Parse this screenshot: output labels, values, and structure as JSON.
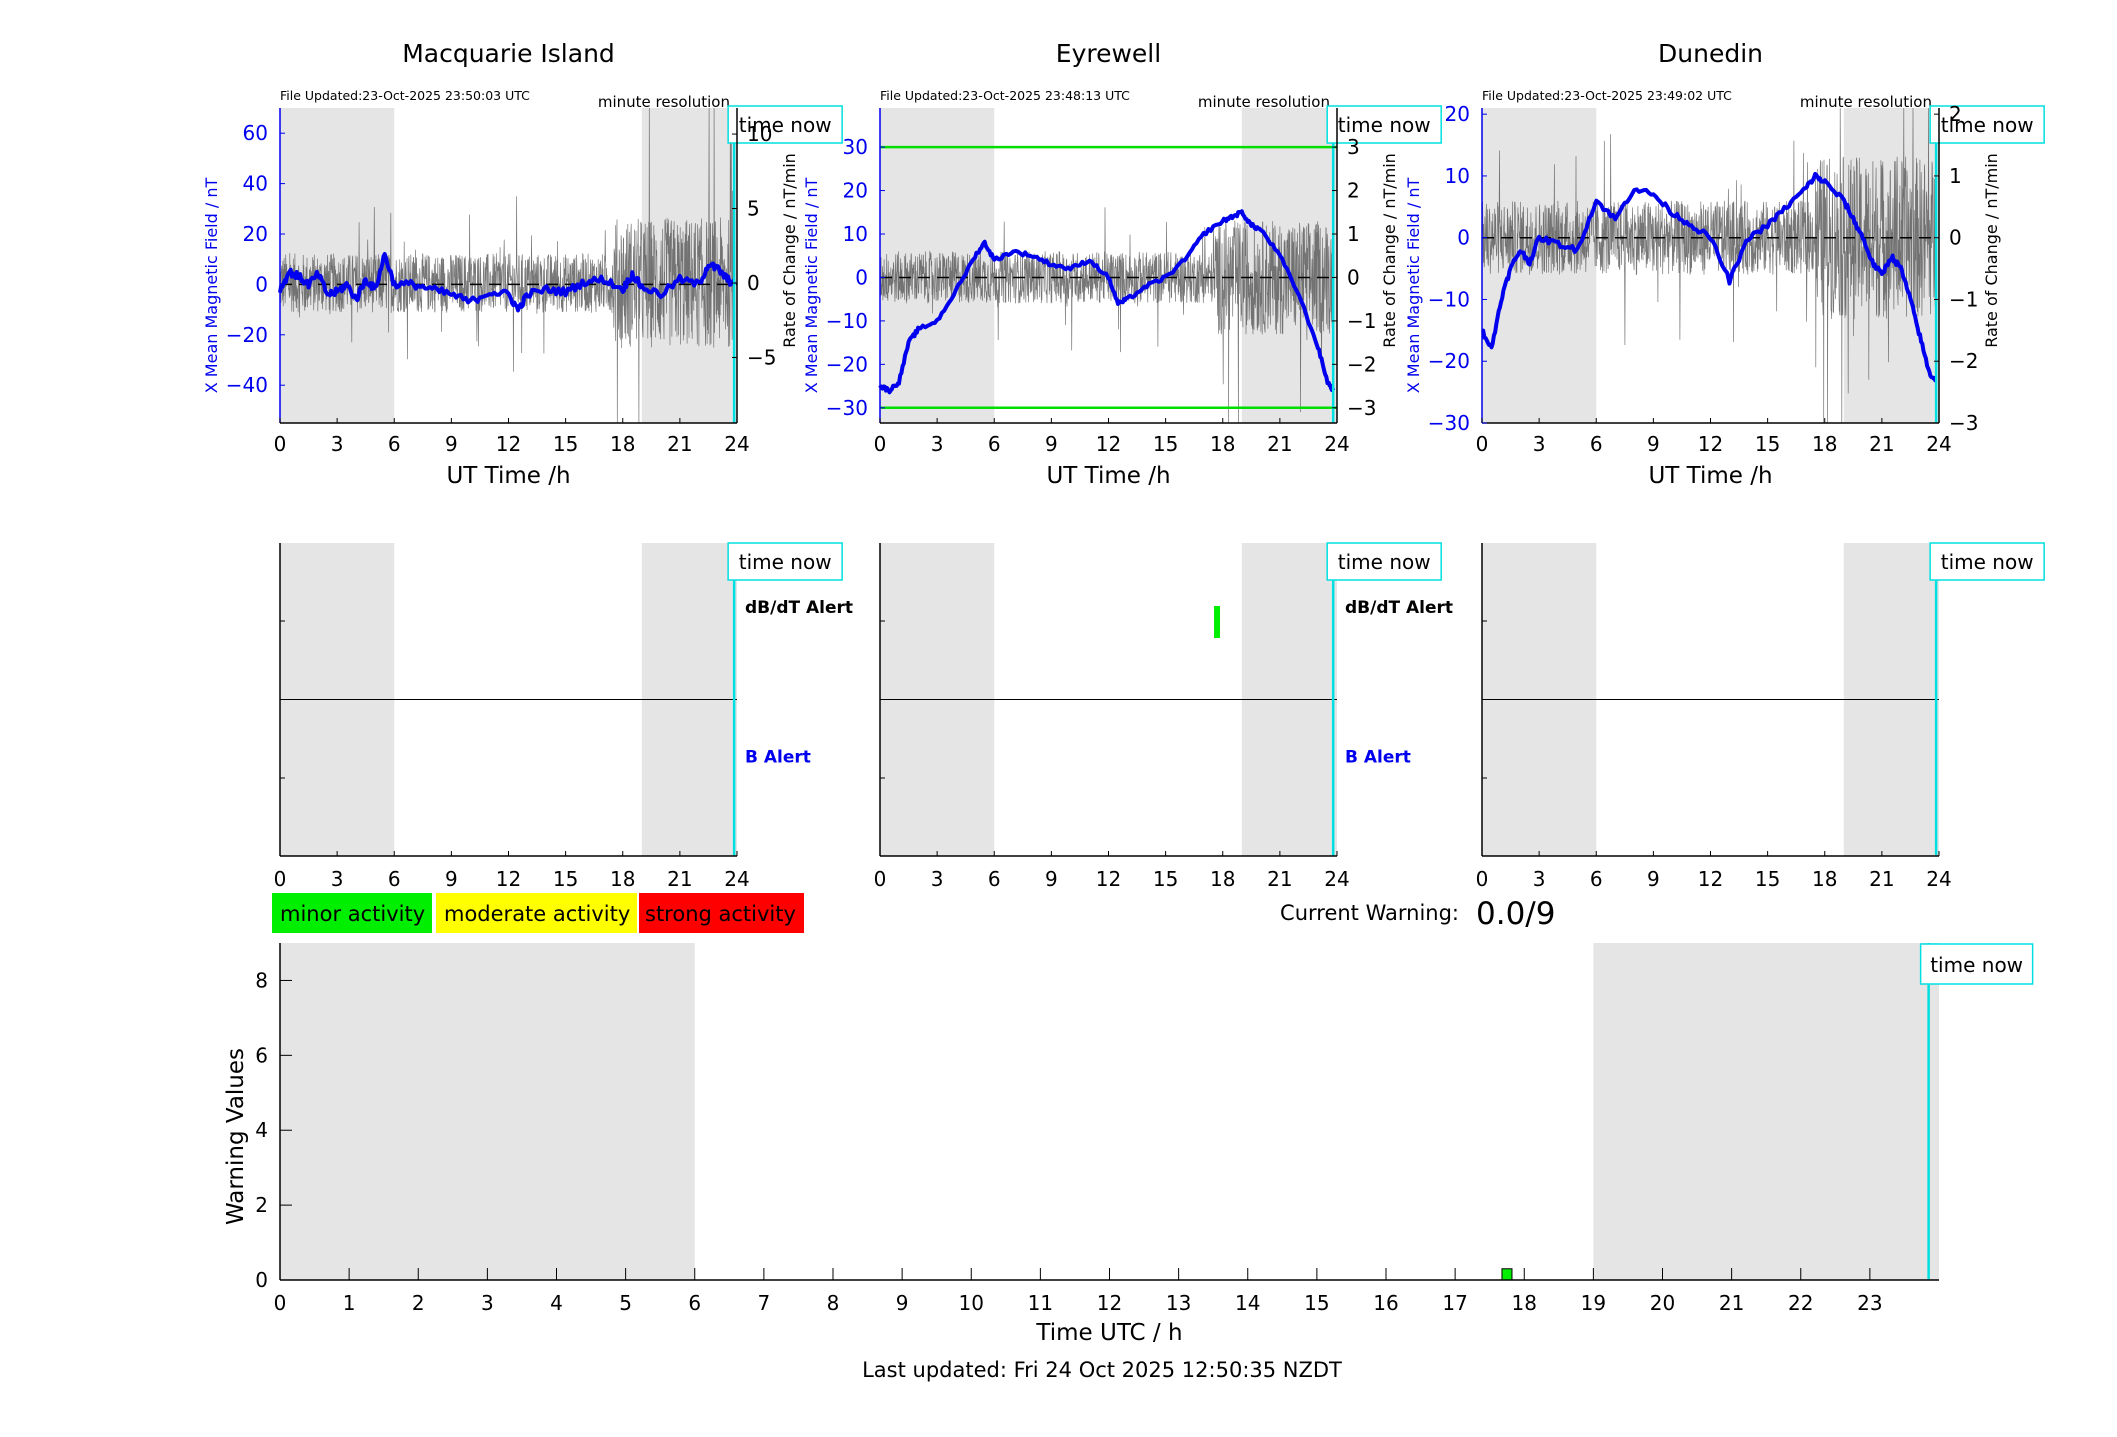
{
  "colors": {
    "field": "#0000ee",
    "rate": "#555555",
    "shade": "#e5e5e5",
    "timenow": "#00e0e0",
    "threshold": "#00dd00",
    "minor": "#00ee00",
    "moderate": "#ffff00",
    "strong": "#ff0000"
  },
  "chart_data": [
    {
      "type": "line",
      "title": "Macquarie Island",
      "file_updated": "File Updated:23-Oct-2025 23:50:03 UTC",
      "resolution": "minute resolution",
      "time_now_label": "time now",
      "time_now": 23.85,
      "xlabel": "UT Time /h",
      "ylabel": "X Mean Magnetic Field / nT",
      "y2label": "Rate of Change / nT/min",
      "xlim": [
        0,
        24
      ],
      "xticks": [
        0,
        3,
        6,
        9,
        12,
        15,
        18,
        21,
        24
      ],
      "ylim": [
        -55,
        70
      ],
      "yticks": [
        -40,
        -20,
        0,
        20,
        40,
        60
      ],
      "y2lim": [
        -9.4,
        11.75
      ],
      "y2ticks": [
        -5,
        0,
        5,
        10
      ],
      "shaded_x": [
        [
          0,
          6
        ],
        [
          19.0,
          24
        ]
      ],
      "noise_amp": 2.0,
      "series": [
        {
          "name": "X Mean Magnetic Field",
          "axis": "left",
          "x": [
            0,
            0.5,
            1,
            1.5,
            2,
            2.5,
            3,
            3.5,
            4,
            4.5,
            5,
            5.5,
            6,
            7,
            8,
            9,
            10,
            11,
            12,
            12.5,
            13,
            14,
            15,
            16,
            17,
            18,
            18.5,
            19,
            20,
            21,
            22,
            22.5,
            23,
            23.5,
            23.85
          ],
          "y": [
            -2,
            5,
            3,
            0,
            4,
            -4,
            -3,
            0,
            -6,
            2,
            -2,
            12,
            0,
            0,
            -2,
            -4,
            -7,
            -3,
            -4,
            -10,
            -4,
            -2,
            -3,
            1,
            2,
            -2,
            4,
            -1,
            -4,
            2,
            0,
            8,
            6,
            2,
            0
          ]
        }
      ]
    },
    {
      "type": "line",
      "title": "Eyrewell",
      "file_updated": "File Updated:23-Oct-2025 23:48:13 UTC",
      "resolution": "minute resolution",
      "time_now_label": "time now",
      "time_now": 23.8,
      "xlabel": "UT Time /h",
      "ylabel": "X Mean Magnetic Field / nT",
      "y2label": "Rate of Change / nT/min",
      "xlim": [
        0,
        24
      ],
      "xticks": [
        0,
        3,
        6,
        9,
        12,
        15,
        18,
        21,
        24
      ],
      "ylim": [
        -33.5,
        39
      ],
      "yticks": [
        -30,
        -20,
        -10,
        0,
        10,
        20,
        30
      ],
      "y2lim": [
        -3.35,
        3.9
      ],
      "y2ticks": [
        -3,
        -2,
        -1,
        0,
        1,
        2,
        3
      ],
      "thresholds": [
        30,
        -30
      ],
      "shaded_x": [
        [
          0,
          6
        ],
        [
          19.0,
          24
        ]
      ],
      "noise_amp": 0.6,
      "series": [
        {
          "name": "X Mean Magnetic Field",
          "axis": "left",
          "x": [
            0,
            0.5,
            1,
            1.5,
            2,
            3,
            4,
            5,
            5.5,
            6,
            7,
            8,
            9,
            10,
            11,
            12,
            12.5,
            13,
            14,
            15,
            16,
            17,
            18,
            18.5,
            19,
            19.5,
            20,
            21,
            22,
            23,
            23.5,
            23.8
          ],
          "y": [
            -25,
            -26,
            -24,
            -15,
            -12,
            -10,
            -3,
            5,
            8,
            4,
            6,
            5,
            3,
            2,
            4,
            0,
            -6,
            -5,
            -2,
            0,
            4,
            10,
            13,
            14,
            15,
            12,
            11,
            5,
            -4,
            -16,
            -24,
            -26
          ]
        }
      ]
    },
    {
      "type": "line",
      "title": "Dunedin",
      "file_updated": "File Updated:23-Oct-2025 23:49:02 UTC",
      "resolution": "minute resolution",
      "time_now_label": "time now",
      "time_now": 23.85,
      "xlabel": "UT Time /h",
      "ylabel": "X Mean Magnetic Field / nT",
      "y2label": "Rate of Change / nT/min",
      "xlim": [
        0,
        24
      ],
      "xticks": [
        0,
        3,
        6,
        9,
        12,
        15,
        18,
        21,
        24
      ],
      "ylim": [
        -30,
        21
      ],
      "yticks": [
        -30,
        -20,
        -10,
        0,
        10,
        20
      ],
      "y2lim": [
        -3,
        2.1
      ],
      "y2ticks": [
        -3,
        -2,
        -1,
        0,
        1,
        2
      ],
      "shaded_x": [
        [
          0,
          6
        ],
        [
          19.0,
          24
        ]
      ],
      "noise_amp": 0.6,
      "series": [
        {
          "name": "X Mean Magnetic Field",
          "axis": "left",
          "x": [
            0,
            0.5,
            1,
            1.5,
            2,
            2.5,
            3,
            4,
            5,
            6,
            7,
            8,
            9,
            10,
            11,
            12,
            13,
            14,
            15,
            16,
            17,
            17.5,
            18,
            19,
            19.5,
            20,
            20.5,
            21,
            21.5,
            22,
            22.5,
            23,
            23.5,
            23.85
          ],
          "y": [
            -15,
            -18,
            -10,
            -5,
            -2,
            -4,
            0,
            -1,
            -2,
            6,
            3,
            8,
            7,
            4,
            2,
            0,
            -7,
            0,
            2,
            5,
            8,
            10,
            9,
            6,
            3,
            0,
            -4,
            -6,
            -3,
            -5,
            -10,
            -16,
            -22,
            -23
          ]
        }
      ]
    },
    {
      "type": "alert",
      "time_now_label": "time now",
      "time_now": 23.85,
      "xlim": [
        0,
        24
      ],
      "xticks": [
        0,
        3,
        6,
        9,
        12,
        15,
        18,
        21,
        24
      ],
      "shaded_x": [
        [
          0,
          6
        ],
        [
          19.0,
          24
        ]
      ],
      "dbdt_label": "dB/dT Alert",
      "b_label": "B Alert",
      "alerts": []
    },
    {
      "type": "alert",
      "time_now_label": "time now",
      "time_now": 23.8,
      "xlim": [
        0,
        24
      ],
      "xticks": [
        0,
        3,
        6,
        9,
        12,
        15,
        18,
        21,
        24
      ],
      "shaded_x": [
        [
          0,
          6
        ],
        [
          19.0,
          24
        ]
      ],
      "dbdt_label": "dB/dT Alert",
      "b_label": "B Alert",
      "alerts": [
        {
          "type": "dB/dT",
          "x": 17.7,
          "level": "minor"
        }
      ]
    },
    {
      "type": "alert",
      "time_now_label": "time now",
      "time_now": 23.85,
      "xlim": [
        0,
        24
      ],
      "xticks": [
        0,
        3,
        6,
        9,
        12,
        15,
        18,
        21,
        24
      ],
      "shaded_x": [
        [
          0,
          6
        ],
        [
          19.0,
          24
        ]
      ],
      "alerts": []
    },
    {
      "type": "bar",
      "xlabel": "Time UTC / h",
      "ylabel": "Warning Values",
      "xlim": [
        0,
        24
      ],
      "xticks": [
        0,
        1,
        2,
        3,
        4,
        5,
        6,
        7,
        8,
        9,
        10,
        11,
        12,
        13,
        14,
        15,
        16,
        17,
        18,
        19,
        20,
        21,
        22,
        23
      ],
      "ylim": [
        0,
        9
      ],
      "yticks": [
        0,
        2,
        4,
        6,
        8
      ],
      "shaded_x": [
        [
          0,
          6
        ],
        [
          19.0,
          24
        ]
      ],
      "time_now_label": "time now",
      "time_now": 23.85,
      "bars": [
        {
          "x": 17.75,
          "value": 0.3,
          "level": "minor"
        }
      ]
    }
  ],
  "legend": {
    "minor": "minor activity",
    "moderate": "moderate activity",
    "strong": "strong activity"
  },
  "warning": {
    "label": "Current Warning:",
    "value": "0.0/9"
  },
  "footer": {
    "last_updated": "Last updated: Fri 24 Oct 2025 12:50:35 NZDT"
  }
}
